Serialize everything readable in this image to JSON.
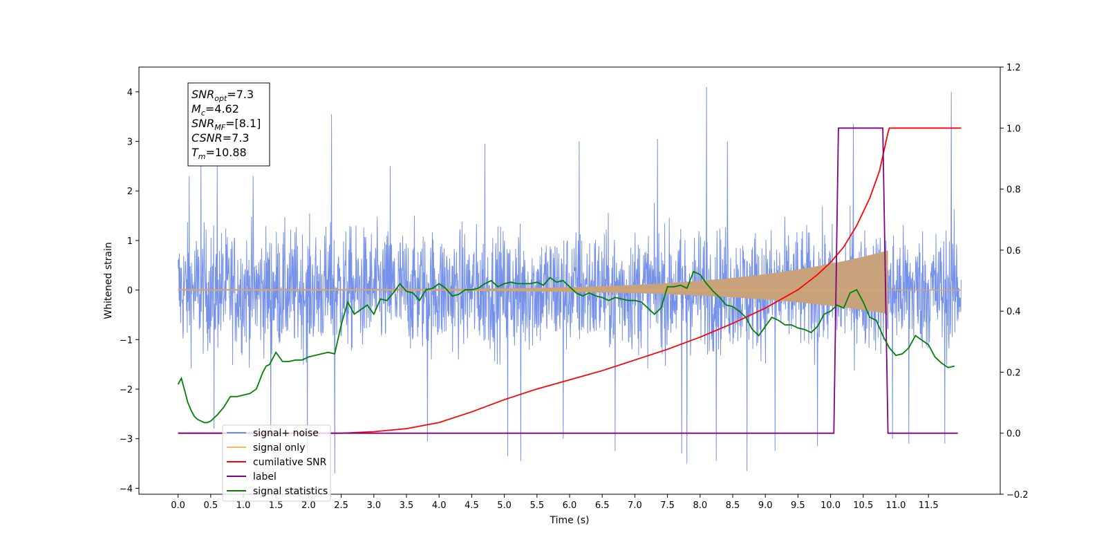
{
  "chart_data": {
    "type": "line",
    "xlabel": "Time (s)",
    "ylabel_left": "Whitened strain",
    "ylabel_right": "",
    "xlim": [
      -0.6,
      12.6
    ],
    "ylim_left": [
      -4.12,
      4.5
    ],
    "ylim_right": [
      -0.2,
      1.2
    ],
    "x_ticks": [
      "0.0",
      "0.5",
      "1.0",
      "1.5",
      "2.0",
      "2.5",
      "3.0",
      "3.5",
      "4.0",
      "4.5",
      "5.0",
      "5.5",
      "6.0",
      "6.5",
      "7.0",
      "7.5",
      "8.0",
      "8.5",
      "9.0",
      "9.5",
      "10.0",
      "10.5",
      "11.0",
      "11.5"
    ],
    "y_ticks_left": [
      "4",
      "3",
      "2",
      "1",
      "0",
      "−1",
      "−2",
      "−3",
      "−4"
    ],
    "y_ticks_right": [
      "1.2",
      "1.0",
      "0.8",
      "0.6",
      "0.4",
      "0.2",
      "0.0",
      "−0.2"
    ],
    "grid": false,
    "legend": {
      "placement": "lower-left",
      "entries": [
        {
          "label": "signal+ noise",
          "color": "#6f8be8"
        },
        {
          "label": "signal only",
          "color": "#f5b95c"
        },
        {
          "label": "cumilative SNR",
          "color": "#ff0000"
        },
        {
          "label": "label",
          "color": "#800080"
        },
        {
          "label": "signal statistics",
          "color": "#008000"
        }
      ]
    },
    "annotation": {
      "lines": [
        {
          "base": "SNR",
          "sub": "opt",
          "rest": "=7.3"
        },
        {
          "base": "M",
          "sub": "c",
          "rest": "=4.62"
        },
        {
          "base": "SNR",
          "sub": "MF",
          "rest": "=[8.1]"
        },
        {
          "base": "CSNR",
          "sub": "",
          "rest": "=7.3"
        },
        {
          "base": "T",
          "sub": "m",
          "rest": "=10.88"
        }
      ]
    },
    "series": [
      {
        "name": "signal+ noise",
        "axis": "left",
        "color": "#6f8be8",
        "style": "noise",
        "x_range": [
          0.0,
          12.0
        ],
        "band_typical": [
          -1.9,
          2.2
        ],
        "spikes": [
          [
            0.17,
            2.3
          ],
          [
            0.35,
            2.7
          ],
          [
            0.55,
            -2.8
          ],
          [
            0.6,
            2.6
          ],
          [
            1.15,
            2.3
          ],
          [
            1.42,
            -3.0
          ],
          [
            1.98,
            -3.3
          ],
          [
            2.35,
            3.55
          ],
          [
            2.4,
            -3.7
          ],
          [
            3.25,
            2.5
          ],
          [
            3.82,
            -3.05
          ],
          [
            4.7,
            2.95
          ],
          [
            5.05,
            -3.35
          ],
          [
            5.25,
            -3.45
          ],
          [
            5.9,
            -3.0
          ],
          [
            6.15,
            3.0
          ],
          [
            6.7,
            -3.25
          ],
          [
            7.35,
            3.05
          ],
          [
            7.72,
            -3.3
          ],
          [
            7.8,
            -3.5
          ],
          [
            8.1,
            4.1
          ],
          [
            8.25,
            -3.45
          ],
          [
            8.42,
            3.0
          ],
          [
            8.72,
            -3.65
          ],
          [
            9.15,
            -3.25
          ],
          [
            9.8,
            -3.15
          ],
          [
            10.35,
            3.35
          ],
          [
            10.95,
            -3.0
          ],
          [
            11.2,
            -3.1
          ],
          [
            11.75,
            -3.1
          ],
          [
            11.85,
            4.0
          ]
        ]
      },
      {
        "name": "signal only",
        "axis": "left",
        "color": "#c8a27a",
        "style": "chirp",
        "x_range": [
          0.0,
          12.0
        ],
        "merger_time": 10.88,
        "amplitude_start": 0.02,
        "amplitude_end": 0.8
      },
      {
        "name": "cumilative SNR",
        "axis": "right",
        "x": [
          0.0,
          2.5,
          3.0,
          3.5,
          4.0,
          4.5,
          5.0,
          5.5,
          6.0,
          6.5,
          7.0,
          7.5,
          8.0,
          8.5,
          9.0,
          9.5,
          9.8,
          10.0,
          10.2,
          10.4,
          10.6,
          10.75,
          10.88,
          10.9,
          12.0
        ],
        "values": [
          0.0,
          0.0,
          0.005,
          0.015,
          0.035,
          0.07,
          0.11,
          0.145,
          0.175,
          0.205,
          0.24,
          0.275,
          0.315,
          0.36,
          0.41,
          0.47,
          0.52,
          0.56,
          0.61,
          0.68,
          0.77,
          0.86,
          0.985,
          1.0,
          1.0
        ]
      },
      {
        "name": "label",
        "axis": "right",
        "x": [
          0.0,
          10.05,
          10.12,
          10.8,
          10.88,
          11.0,
          11.95
        ],
        "values": [
          0.0,
          0.0,
          1.0,
          1.0,
          0.0,
          0.0,
          0.0
        ]
      },
      {
        "name": "signal statistics",
        "axis": "right",
        "x": [
          0.0,
          0.05,
          0.1,
          0.15,
          0.2,
          0.25,
          0.3,
          0.35,
          0.4,
          0.45,
          0.5,
          0.6,
          0.7,
          0.8,
          0.9,
          1.0,
          1.1,
          1.2,
          1.3,
          1.35,
          1.4,
          1.5,
          1.6,
          1.7,
          1.8,
          1.9,
          2.0,
          2.1,
          2.2,
          2.3,
          2.4,
          2.5,
          2.6,
          2.7,
          2.8,
          2.9,
          3.0,
          3.1,
          3.2,
          3.3,
          3.4,
          3.5,
          3.6,
          3.7,
          3.8,
          3.9,
          4.0,
          4.1,
          4.2,
          4.3,
          4.4,
          4.5,
          4.6,
          4.7,
          4.8,
          4.9,
          5.0,
          5.1,
          5.2,
          5.3,
          5.4,
          5.5,
          5.6,
          5.7,
          5.8,
          5.9,
          6.0,
          6.1,
          6.2,
          6.3,
          6.4,
          6.5,
          6.6,
          6.7,
          6.8,
          6.9,
          7.0,
          7.1,
          7.2,
          7.3,
          7.4,
          7.5,
          7.6,
          7.7,
          7.8,
          7.9,
          8.0,
          8.1,
          8.2,
          8.3,
          8.4,
          8.5,
          8.6,
          8.7,
          8.8,
          8.9,
          9.0,
          9.1,
          9.2,
          9.3,
          9.4,
          9.5,
          9.6,
          9.7,
          9.8,
          9.9,
          10.0,
          10.1,
          10.2,
          10.3,
          10.4,
          10.5,
          10.6,
          10.7,
          10.8,
          10.9,
          11.0,
          11.1,
          11.2,
          11.3,
          11.4,
          11.5,
          11.6,
          11.7,
          11.8,
          11.9
        ],
        "values": [
          0.16,
          0.18,
          0.14,
          0.1,
          0.075,
          0.055,
          0.045,
          0.04,
          0.035,
          0.035,
          0.04,
          0.06,
          0.085,
          0.12,
          0.12,
          0.125,
          0.13,
          0.145,
          0.2,
          0.22,
          0.225,
          0.265,
          0.235,
          0.235,
          0.24,
          0.24,
          0.25,
          0.255,
          0.26,
          0.265,
          0.26,
          0.355,
          0.43,
          0.39,
          0.405,
          0.42,
          0.39,
          0.44,
          0.435,
          0.46,
          0.49,
          0.465,
          0.46,
          0.435,
          0.47,
          0.475,
          0.49,
          0.475,
          0.45,
          0.455,
          0.47,
          0.47,
          0.475,
          0.49,
          0.5,
          0.48,
          0.49,
          0.495,
          0.49,
          0.49,
          0.49,
          0.495,
          0.485,
          0.51,
          0.495,
          0.5,
          0.48,
          0.46,
          0.45,
          0.46,
          0.45,
          0.445,
          0.435,
          0.445,
          0.44,
          0.435,
          0.435,
          0.43,
          0.41,
          0.39,
          0.41,
          0.48,
          0.48,
          0.485,
          0.475,
          0.53,
          0.52,
          0.49,
          0.465,
          0.445,
          0.42,
          0.415,
          0.4,
          0.38,
          0.34,
          0.32,
          0.35,
          0.38,
          0.37,
          0.355,
          0.355,
          0.345,
          0.34,
          0.33,
          0.35,
          0.39,
          0.4,
          0.42,
          0.41,
          0.46,
          0.47,
          0.43,
          0.38,
          0.37,
          0.32,
          0.28,
          0.255,
          0.26,
          0.28,
          0.32,
          0.305,
          0.29,
          0.25,
          0.23,
          0.215,
          0.22
        ]
      }
    ]
  }
}
